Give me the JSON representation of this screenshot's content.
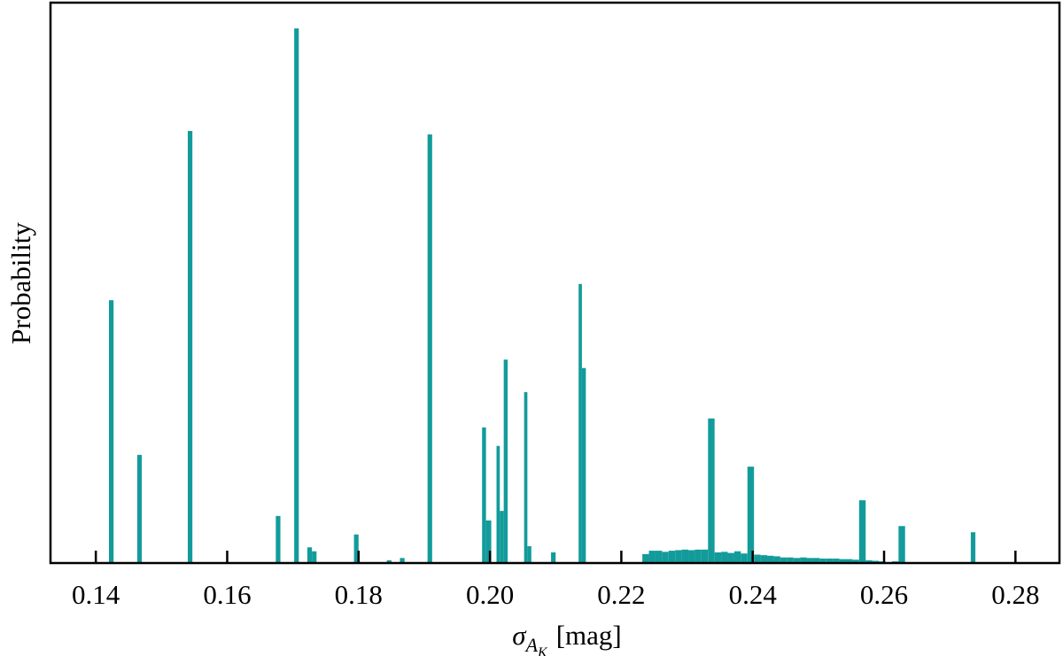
{
  "chart_data": {
    "type": "histogram",
    "xlabel": {
      "symbol": "σ",
      "sub": "A",
      "subsub": "K",
      "unit": "[mag]"
    },
    "ylabel": "Probability",
    "color": "#139b9b",
    "bins": [
      0.142,
      0.1427,
      0.1463,
      0.147,
      0.154,
      0.1547,
      0.1674,
      0.1681,
      0.1702,
      0.1709,
      0.1722,
      0.1729,
      0.1736,
      0.1793,
      0.18,
      0.1843,
      0.185,
      0.1863,
      0.187,
      0.1905,
      0.1912,
      0.1988,
      0.1994,
      0.2002,
      0.201,
      0.2015,
      0.2021,
      0.2027,
      0.2052,
      0.2057,
      0.2063,
      0.2093,
      0.21,
      0.2135,
      0.214,
      0.2146,
      0.2232,
      0.2242,
      0.2252,
      0.2262,
      0.2272,
      0.2282,
      0.2292,
      0.2302,
      0.2312,
      0.2322,
      0.2332,
      0.2342,
      0.2352,
      0.2362,
      0.2372,
      0.2382,
      0.2392,
      0.2402,
      0.2412,
      0.2422,
      0.2432,
      0.2442,
      0.2452,
      0.2462,
      0.2472,
      0.2482,
      0.2492,
      0.2502,
      0.2512,
      0.2522,
      0.2532,
      0.2542,
      0.2552,
      0.2562,
      0.2572,
      0.2582,
      0.2592,
      0.2602,
      0.2612,
      0.2622,
      0.2632,
      0.2732,
      0.2739
    ],
    "counts": [
      46.9,
      0,
      19.3,
      0,
      77.1,
      0,
      8.4,
      0,
      95.4,
      0,
      2.8,
      2.1,
      0,
      5.1,
      0,
      0.5,
      0,
      0.9,
      0,
      76.5,
      0,
      24.2,
      7.6,
      0,
      20.9,
      9.3,
      36.3,
      0,
      30.5,
      3.0,
      0,
      1.9,
      0,
      49.8,
      34.8,
      0,
      1.6,
      2.2,
      2.2,
      2.0,
      2.2,
      2.3,
      2.4,
      2.3,
      2.4,
      2.4,
      25.8,
      1.9,
      2.0,
      1.8,
      2.1,
      1.7,
      17.2,
      1.5,
      1.4,
      1.3,
      1.2,
      1.0,
      1.0,
      0.9,
      1.0,
      0.9,
      0.9,
      0.8,
      0.8,
      0.8,
      0.7,
      0.7,
      0.6,
      11.2,
      0.5,
      0.4,
      0.3,
      0,
      0.3,
      6.6,
      0,
      5.5
    ],
    "xlim": [
      0.1331,
      0.2867
    ],
    "ylim": [
      0,
      100
    ],
    "xticks": [
      0.14,
      0.16,
      0.18,
      {
        "value": 0.2,
        "label": "0.20"
      },
      0.22,
      0.24,
      0.26,
      0.28
    ]
  }
}
